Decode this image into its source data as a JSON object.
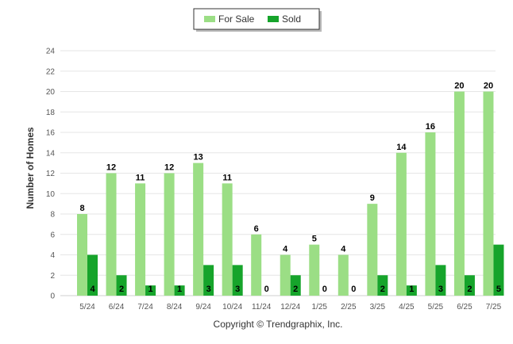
{
  "chart_data": {
    "type": "bar",
    "categories": [
      "5/24",
      "6/24",
      "7/24",
      "8/24",
      "9/24",
      "10/24",
      "11/24",
      "12/24",
      "1/25",
      "2/25",
      "3/25",
      "4/25",
      "5/25",
      "6/25",
      "7/25"
    ],
    "series": [
      {
        "name": "For Sale",
        "color": "#9bde85",
        "values": [
          8,
          12,
          11,
          12,
          13,
          11,
          6,
          4,
          5,
          4,
          9,
          14,
          16,
          20,
          20
        ]
      },
      {
        "name": "Sold",
        "color": "#16a42b",
        "values": [
          4,
          2,
          1,
          1,
          3,
          3,
          0,
          2,
          0,
          0,
          2,
          1,
          3,
          2,
          5
        ]
      }
    ],
    "ylabel": "Number of Homes",
    "ylim": [
      0,
      24
    ],
    "yticks": [
      0,
      2,
      4,
      6,
      8,
      10,
      12,
      14,
      16,
      18,
      20,
      22,
      24
    ],
    "grid": true,
    "legend_position": "top-center",
    "credit": "Copyright © Trendgraphix, Inc."
  }
}
